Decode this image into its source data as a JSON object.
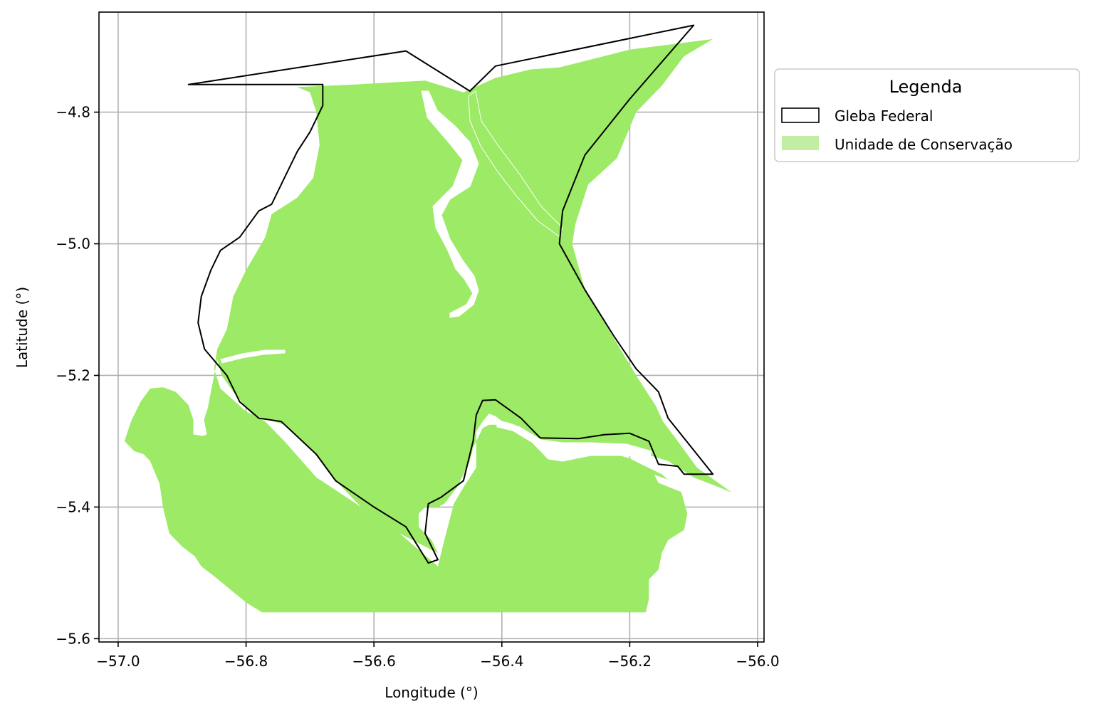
{
  "chart_data": {
    "type": "map",
    "xlabel": "Longitude (°)",
    "ylabel": "Latitude (°)",
    "xlim": [
      -57.03,
      -55.99
    ],
    "ylim": [
      -5.605,
      -4.648
    ],
    "x_ticks": [
      -57.0,
      -56.8,
      -56.6,
      -56.4,
      -56.2,
      -56.0
    ],
    "x_tick_labels": [
      "−57.0",
      "−56.8",
      "−56.6",
      "−56.4",
      "−56.2",
      "−56.0"
    ],
    "y_ticks": [
      -4.8,
      -5.0,
      -5.2,
      -5.4,
      -5.6
    ],
    "y_tick_labels": [
      "−4.8",
      "−5.0",
      "−5.2",
      "−5.4",
      "−5.6"
    ],
    "grid": true,
    "legend": {
      "title": "Legenda",
      "placement": "outside right, top",
      "entries": [
        {
          "label": "Gleba Federal",
          "style": "outline",
          "color": "#000000"
        },
        {
          "label": "Unidade de Conservação",
          "style": "fill",
          "color": "#c2eea3"
        }
      ]
    },
    "layers": [
      {
        "name": "Unidade de Conservação",
        "fill": "#9cea66",
        "polygon": [
          [
            -56.72,
            -4.762
          ],
          [
            -56.63,
            -4.758
          ],
          [
            -56.52,
            -4.752
          ],
          [
            -56.46,
            -4.77
          ],
          [
            -56.41,
            -4.748
          ],
          [
            -56.355,
            -4.735
          ],
          [
            -56.31,
            -4.732
          ],
          [
            -56.2,
            -4.705
          ],
          [
            -56.07,
            -4.689
          ],
          [
            -56.115,
            -4.715
          ],
          [
            -56.15,
            -4.76
          ],
          [
            -56.19,
            -4.8
          ],
          [
            -56.22,
            -4.87
          ],
          [
            -56.265,
            -4.91
          ],
          [
            -56.285,
            -4.97
          ],
          [
            -56.29,
            -5.0
          ],
          [
            -56.27,
            -5.07
          ],
          [
            -56.23,
            -5.135
          ],
          [
            -56.19,
            -5.2
          ],
          [
            -56.16,
            -5.245
          ],
          [
            -56.148,
            -5.27
          ],
          [
            -56.125,
            -5.3
          ],
          [
            -56.095,
            -5.34
          ],
          [
            -56.04,
            -5.378
          ],
          [
            -56.06,
            -5.37
          ],
          [
            -56.1,
            -5.355
          ],
          [
            -56.14,
            -5.33
          ],
          [
            -56.19,
            -5.315
          ],
          [
            -56.25,
            -5.31
          ],
          [
            -56.32,
            -5.302
          ],
          [
            -56.365,
            -5.295
          ],
          [
            -56.41,
            -5.262
          ],
          [
            -56.42,
            -5.258
          ],
          [
            -56.43,
            -5.27
          ],
          [
            -56.44,
            -5.285
          ],
          [
            -56.44,
            -5.34
          ],
          [
            -56.46,
            -5.37
          ],
          [
            -56.475,
            -5.395
          ],
          [
            -56.49,
            -5.45
          ],
          [
            -56.5,
            -5.49
          ],
          [
            -56.56,
            -5.44
          ],
          [
            -56.62,
            -5.4
          ],
          [
            -56.66,
            -5.36
          ],
          [
            -56.7,
            -5.31
          ],
          [
            -56.74,
            -5.275
          ],
          [
            -56.79,
            -5.26
          ],
          [
            -56.82,
            -5.225
          ],
          [
            -56.838,
            -5.2
          ],
          [
            -56.845,
            -5.175
          ],
          [
            -56.85,
            -5.2
          ],
          [
            -56.86,
            -5.25
          ],
          [
            -56.87,
            -5.28
          ],
          [
            -56.88,
            -5.275
          ],
          [
            -56.89,
            -5.245
          ],
          [
            -56.91,
            -5.225
          ],
          [
            -56.93,
            -5.218
          ],
          [
            -56.95,
            -5.22
          ],
          [
            -56.965,
            -5.24
          ],
          [
            -56.98,
            -5.27
          ],
          [
            -56.99,
            -5.3
          ],
          [
            -56.975,
            -5.315
          ],
          [
            -56.96,
            -5.32
          ],
          [
            -56.95,
            -5.33
          ],
          [
            -56.935,
            -5.365
          ],
          [
            -56.93,
            -5.4
          ],
          [
            -56.92,
            -5.44
          ],
          [
            -56.9,
            -5.46
          ],
          [
            -56.88,
            -5.475
          ],
          [
            -56.87,
            -5.49
          ],
          [
            -56.85,
            -5.505
          ],
          [
            -56.825,
            -5.525
          ],
          [
            -56.8,
            -5.545
          ],
          [
            -56.775,
            -5.56
          ],
          [
            -56.68,
            -5.56
          ],
          [
            -56.5,
            -5.56
          ],
          [
            -56.3,
            -5.56
          ],
          [
            -56.175,
            -5.56
          ],
          [
            -56.17,
            -5.54
          ],
          [
            -56.17,
            -5.51
          ],
          [
            -56.16,
            -5.5
          ],
          [
            -56.155,
            -5.495
          ],
          [
            -56.15,
            -5.47
          ],
          [
            -56.14,
            -5.45
          ],
          [
            -56.115,
            -5.435
          ],
          [
            -56.11,
            -5.41
          ],
          [
            -56.12,
            -5.375
          ],
          [
            -56.15,
            -5.35
          ],
          [
            -56.18,
            -5.336
          ],
          [
            -56.2,
            -5.326
          ],
          [
            -56.24,
            -5.315
          ],
          [
            -56.285,
            -5.31
          ],
          [
            -56.32,
            -5.305
          ],
          [
            -56.34,
            -5.3
          ],
          [
            -56.36,
            -5.287
          ],
          [
            -56.38,
            -5.275
          ],
          [
            -56.395,
            -5.27
          ],
          [
            -56.4,
            -5.275
          ],
          [
            -56.42,
            -5.275
          ],
          [
            -56.43,
            -5.28
          ],
          [
            -56.445,
            -5.31
          ],
          [
            -56.45,
            -5.33
          ],
          [
            -56.47,
            -5.37
          ],
          [
            -56.49,
            -5.395
          ],
          [
            -56.5,
            -5.4
          ],
          [
            -56.52,
            -5.4
          ],
          [
            -56.53,
            -5.41
          ],
          [
            -56.53,
            -5.43
          ],
          [
            -56.51,
            -5.45
          ],
          [
            -56.5,
            -5.47
          ],
          [
            -56.52,
            -5.46
          ],
          [
            -56.56,
            -5.44
          ],
          [
            -56.62,
            -5.4
          ],
          [
            -56.69,
            -5.355
          ],
          [
            -56.74,
            -5.3
          ],
          [
            -56.77,
            -5.27
          ],
          [
            -56.8,
            -5.255
          ],
          [
            -56.84,
            -5.22
          ],
          [
            -56.85,
            -5.19
          ],
          [
            -56.845,
            -5.16
          ],
          [
            -56.83,
            -5.13
          ],
          [
            -56.82,
            -5.08
          ],
          [
            -56.8,
            -5.04
          ],
          [
            -56.77,
            -4.99
          ],
          [
            -56.76,
            -4.955
          ],
          [
            -56.72,
            -4.93
          ],
          [
            -56.695,
            -4.9
          ],
          [
            -56.685,
            -4.85
          ],
          [
            -56.69,
            -4.8
          ],
          [
            -56.7,
            -4.77
          ]
        ]
      },
      {
        "name": "Gleba Federal",
        "stroke": "#000000",
        "polygon": [
          [
            -56.89,
            -4.758
          ],
          [
            -56.55,
            -4.707
          ],
          [
            -56.45,
            -4.768
          ],
          [
            -56.41,
            -4.73
          ],
          [
            -56.1,
            -4.668
          ],
          [
            -56.2,
            -4.78
          ],
          [
            -56.27,
            -4.865
          ],
          [
            -56.305,
            -4.95
          ],
          [
            -56.31,
            -5.0
          ],
          [
            -56.27,
            -5.07
          ],
          [
            -56.225,
            -5.14
          ],
          [
            -56.19,
            -5.19
          ],
          [
            -56.155,
            -5.225
          ],
          [
            -56.14,
            -5.265
          ],
          [
            -56.07,
            -5.35
          ],
          [
            -56.115,
            -5.35
          ],
          [
            -56.125,
            -5.338
          ],
          [
            -56.155,
            -5.335
          ],
          [
            -56.17,
            -5.3
          ],
          [
            -56.2,
            -5.288
          ],
          [
            -56.24,
            -5.29
          ],
          [
            -56.28,
            -5.296
          ],
          [
            -56.34,
            -5.295
          ],
          [
            -56.37,
            -5.265
          ],
          [
            -56.41,
            -5.237
          ],
          [
            -56.43,
            -5.238
          ],
          [
            -56.44,
            -5.26
          ],
          [
            -56.445,
            -5.3
          ],
          [
            -56.46,
            -5.36
          ],
          [
            -56.495,
            -5.385
          ],
          [
            -56.515,
            -5.395
          ],
          [
            -56.52,
            -5.44
          ],
          [
            -56.5,
            -5.48
          ],
          [
            -56.515,
            -5.485
          ],
          [
            -56.55,
            -5.43
          ],
          [
            -56.6,
            -5.4
          ],
          [
            -56.66,
            -5.36
          ],
          [
            -56.69,
            -5.32
          ],
          [
            -56.745,
            -5.27
          ],
          [
            -56.78,
            -5.265
          ],
          [
            -56.81,
            -5.24
          ],
          [
            -56.83,
            -5.2
          ],
          [
            -56.865,
            -5.16
          ],
          [
            -56.875,
            -5.12
          ],
          [
            -56.87,
            -5.08
          ],
          [
            -56.855,
            -5.04
          ],
          [
            -56.84,
            -5.01
          ],
          [
            -56.81,
            -4.99
          ],
          [
            -56.78,
            -4.95
          ],
          [
            -56.76,
            -4.94
          ],
          [
            -56.74,
            -4.9
          ],
          [
            -56.72,
            -4.86
          ],
          [
            -56.7,
            -4.83
          ],
          [
            -56.68,
            -4.79
          ],
          [
            -56.68,
            -4.758
          ]
        ]
      }
    ]
  }
}
